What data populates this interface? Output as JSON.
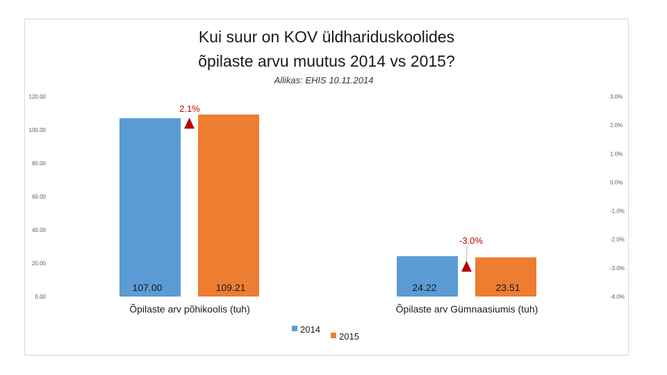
{
  "chart_data": {
    "type": "bar",
    "title_line1": "Kui suur on KOV üldhariduskoolides",
    "title_line2": "õpilaste arvu muutus  2014 vs 2015?",
    "subtitle": "Allikas: EHIS 10.11.2014",
    "categories": [
      "Õpilaste arv põhikoolis (tuh)",
      "Õpilaste arv Gümnaasiumis (tuh)"
    ],
    "series": [
      {
        "name": "2014",
        "color": "#5b9bd5",
        "values": [
          107.0,
          24.22
        ],
        "labels": [
          "107.00",
          "24.22"
        ]
      },
      {
        "name": "2015",
        "color": "#ed7d31",
        "values": [
          109.21,
          23.51
        ],
        "labels": [
          "109.21",
          "23.51"
        ]
      }
    ],
    "ylim": [
      0,
      120
    ],
    "y_ticks": [
      "0.00",
      "20.00",
      "40.00",
      "60.00",
      "80.00",
      "100.00",
      "120.00"
    ],
    "y2lim": [
      -4,
      3
    ],
    "y2_ticks": [
      "-4.0%",
      "-3.0%",
      "-2.0%",
      "-1.0%",
      "0.0%",
      "1.0%",
      "2.0%",
      "3.0%"
    ],
    "changes": [
      {
        "label": "2.1%",
        "value": 2.1,
        "marker_color": "#c00000"
      },
      {
        "label": "-3.0%",
        "value": -3.0,
        "marker_color": "#c00000"
      }
    ],
    "legend": [
      "2014",
      "2015"
    ]
  }
}
